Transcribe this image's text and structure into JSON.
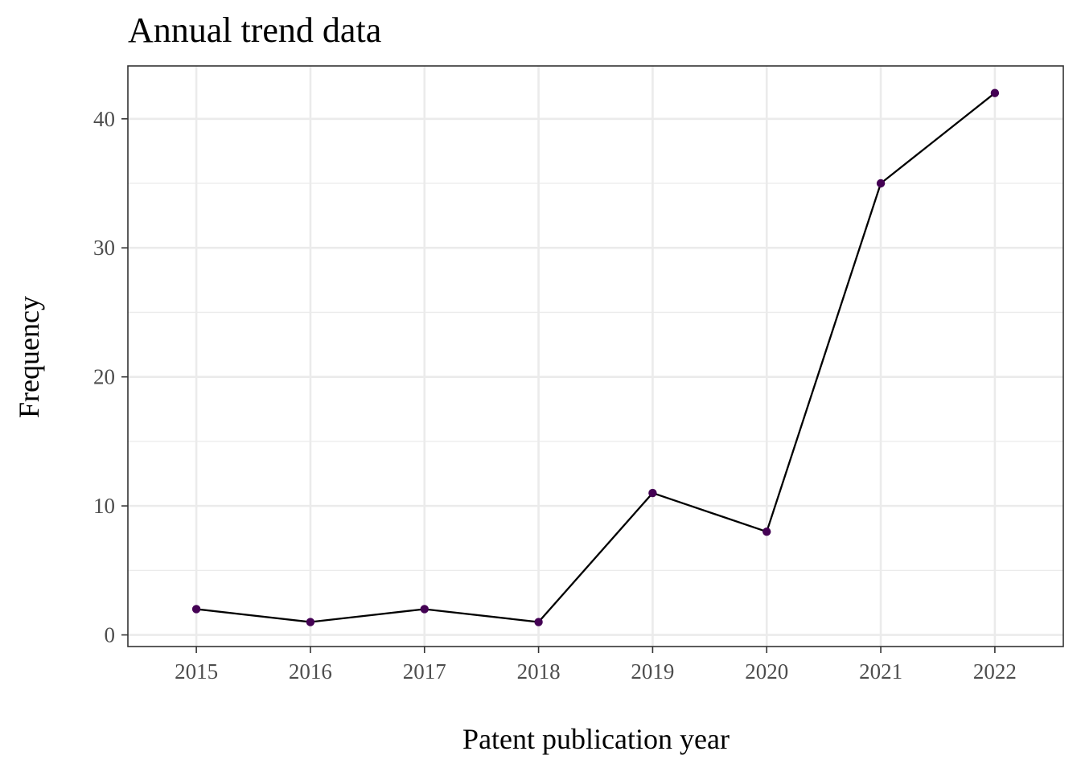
{
  "chart_data": {
    "type": "line",
    "title": "Annual trend data",
    "xlabel": "Patent publication year",
    "ylabel": "Frequency",
    "x": [
      2015,
      2016,
      2017,
      2018,
      2019,
      2020,
      2021,
      2022
    ],
    "series": [
      {
        "values": [
          2,
          1,
          2,
          1,
          11,
          8,
          35,
          42
        ]
      }
    ],
    "xlim": [
      2014.4,
      2022.6
    ],
    "ylim": [
      -0.9,
      44.1
    ],
    "y_ticks": [
      0,
      10,
      20,
      30,
      40
    ],
    "y_minor_ticks": [
      5,
      15,
      25,
      35
    ],
    "grid": true,
    "line_color": "#000000",
    "point_color": "#440154",
    "background": "#ffffff"
  }
}
